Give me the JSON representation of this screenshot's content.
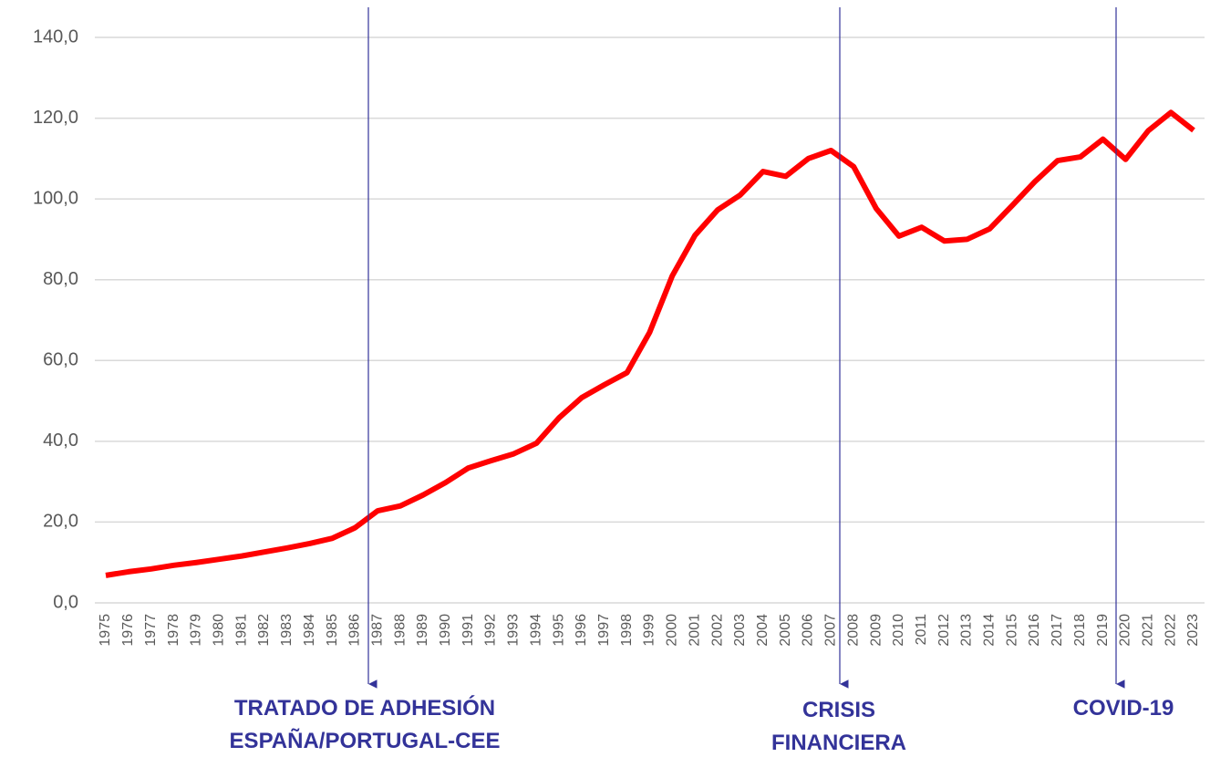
{
  "chart_data": {
    "type": "line",
    "categories": [
      "1975",
      "1976",
      "1977",
      "1978",
      "1979",
      "1980",
      "1981",
      "1982",
      "1983",
      "1984",
      "1985",
      "1986",
      "1987",
      "1988",
      "1989",
      "1990",
      "1991",
      "1992",
      "1993",
      "1994",
      "1995",
      "1996",
      "1997",
      "1998",
      "1999",
      "2000",
      "2001",
      "2002",
      "2003",
      "2004",
      "2005",
      "2006",
      "2007",
      "2008",
      "2009",
      "2010",
      "2011",
      "2012",
      "2013",
      "2014",
      "2015",
      "2016",
      "2017",
      "2018",
      "2019",
      "2020",
      "2021",
      "2022",
      "2023"
    ],
    "series": [
      {
        "color": "#ff0000",
        "values": [
          6.8,
          7.7,
          8.4,
          9.3,
          10.0,
          10.8,
          11.6,
          12.6,
          13.6,
          14.7,
          16.0,
          18.6,
          22.8,
          24.0,
          26.7,
          29.8,
          33.4,
          35.2,
          36.9,
          39.5,
          45.8,
          50.8,
          54.0,
          57.0,
          67.0,
          81.0,
          91.0,
          97.3,
          101.0,
          106.8,
          105.6,
          110.0,
          112.0,
          108.0,
          97.6,
          90.8,
          93.0,
          89.6,
          90.0,
          92.6,
          98.4,
          104.3,
          109.5,
          110.4,
          114.8,
          109.8,
          116.9,
          121.4,
          117.0
        ]
      }
    ],
    "ylim": [
      0,
      140
    ],
    "yticks": [
      {
        "value": 0,
        "label": "0,0"
      },
      {
        "value": 20,
        "label": "20,0"
      },
      {
        "value": 40,
        "label": "40,0"
      },
      {
        "value": 60,
        "label": "60,0"
      },
      {
        "value": 80,
        "label": "80,0"
      },
      {
        "value": 100,
        "label": "100,0"
      },
      {
        "value": 120,
        "label": "120,0"
      },
      {
        "value": 140,
        "label": "140,0"
      }
    ],
    "grid": true,
    "annotations": [
      {
        "lines": [
          "TRATADO DE ADHESIÓN",
          "ESPAÑA/PORTUGAL-CEE"
        ]
      },
      {
        "lines": [
          "CRISIS",
          "FINANCIERA"
        ]
      },
      {
        "lines": [
          "COVID-19"
        ]
      }
    ]
  }
}
